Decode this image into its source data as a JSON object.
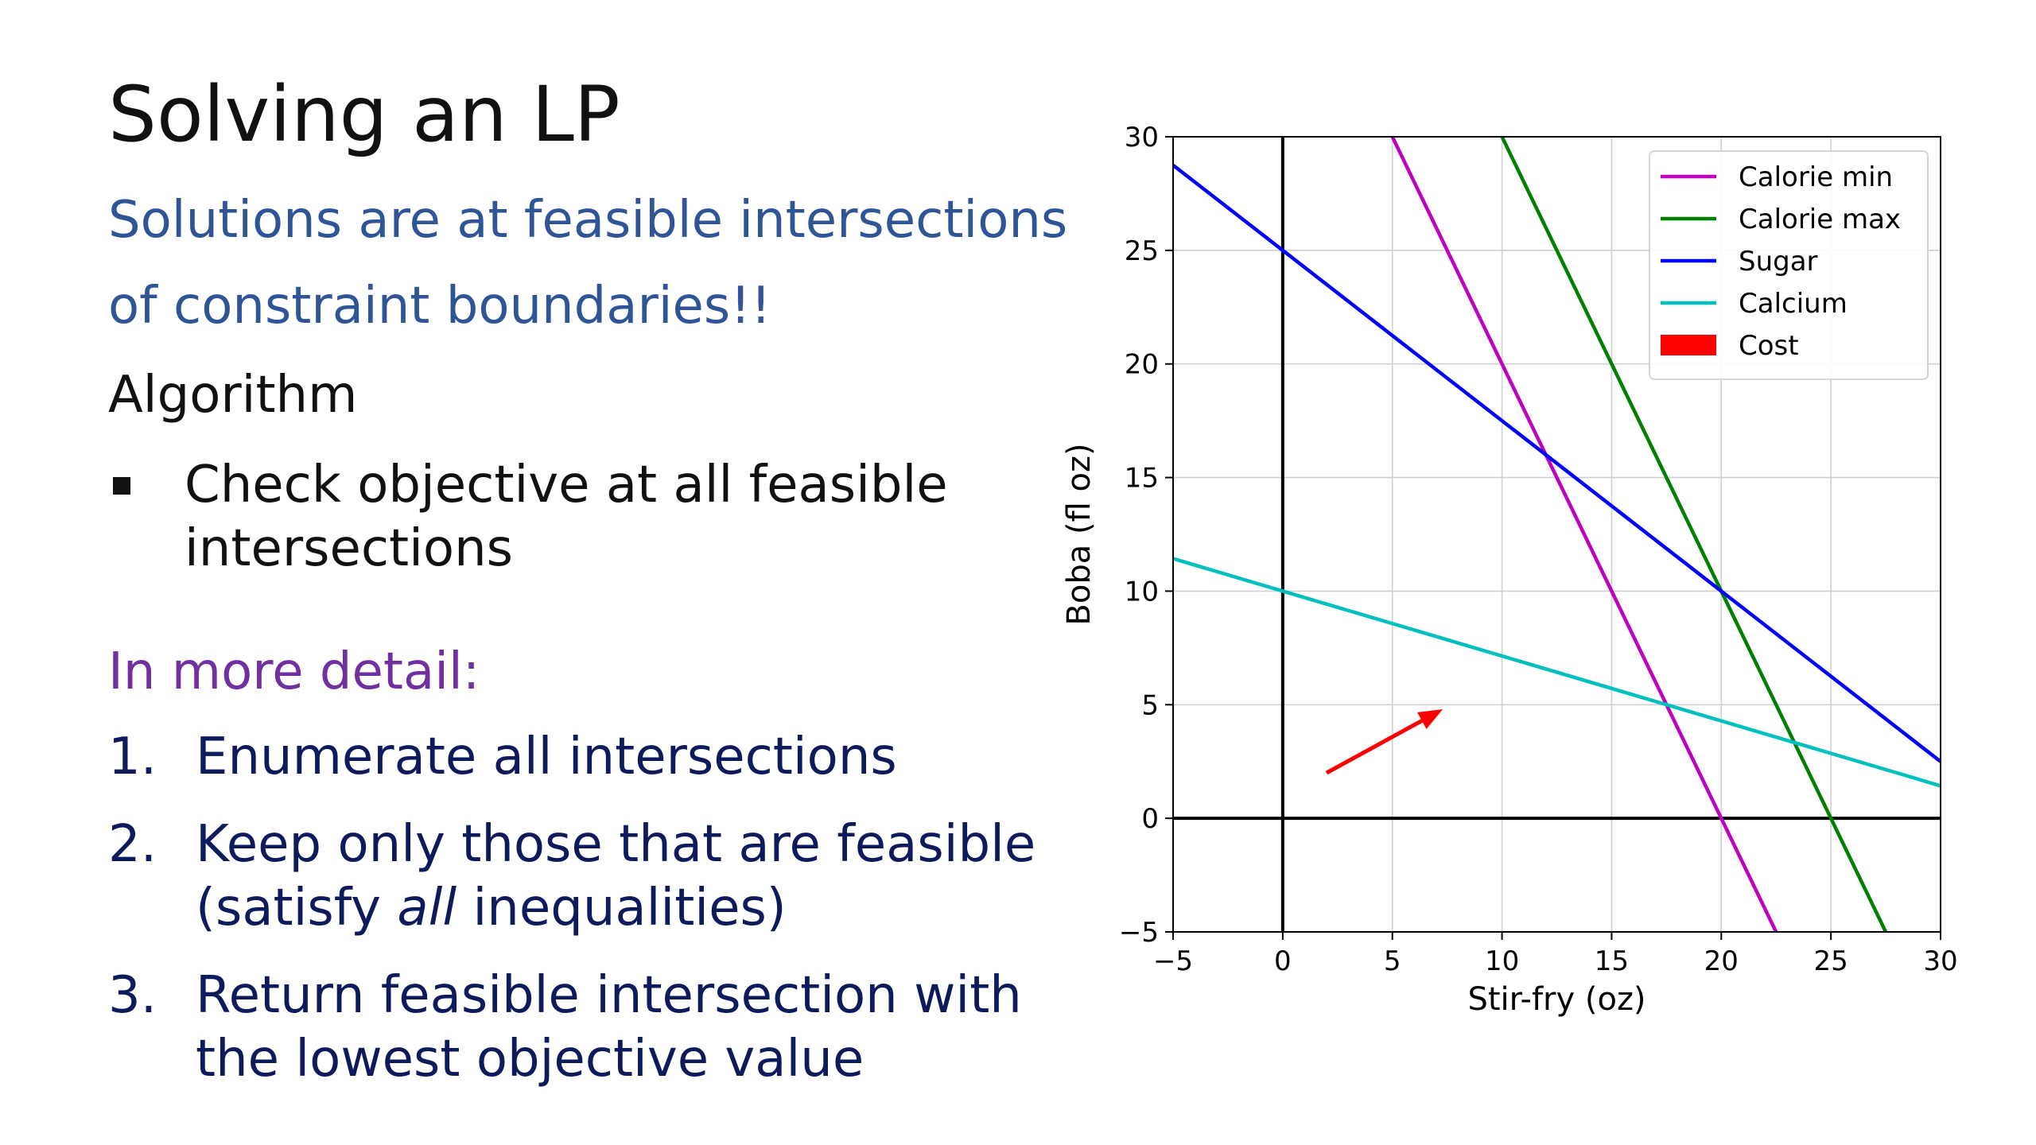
{
  "slide": {
    "title": "Solving an LP",
    "subtitle_line1": "Solutions are at feasible intersections",
    "subtitle_line2": "of constraint boundaries!!",
    "algorithm_heading": "Algorithm",
    "bullet_line1": "Check objective at all feasible",
    "bullet_line2": "intersections",
    "detail_heading": "In more detail:",
    "steps": [
      {
        "num": "1.",
        "line1": "Enumerate all intersections"
      },
      {
        "num": "2.",
        "line1": "Keep only those that are feasible",
        "line2_pre": "(satisfy ",
        "line2_em": "all",
        "line2_post": " inequalities)"
      },
      {
        "num": "3.",
        "line1": "Return feasible intersection with",
        "line2": "the lowest objective value"
      }
    ]
  },
  "chart_data": {
    "type": "line",
    "xlabel": "Stir-fry (oz)",
    "ylabel": "Boba (fl oz)",
    "xlim": [
      -5,
      30
    ],
    "ylim": [
      -5,
      30
    ],
    "xticks": [
      -5,
      0,
      5,
      10,
      15,
      20,
      25,
      30
    ],
    "yticks": [
      -5,
      0,
      5,
      10,
      15,
      20,
      25,
      30
    ],
    "grid": true,
    "legend_position": "top-right",
    "series": [
      {
        "name": "Calorie min",
        "color": "#BF00BF",
        "points": [
          [
            5,
            30
          ],
          [
            22.5,
            -5
          ]
        ]
      },
      {
        "name": "Calorie max",
        "color": "#008000",
        "points": [
          [
            10,
            30
          ],
          [
            27.5,
            -5
          ]
        ]
      },
      {
        "name": "Sugar",
        "color": "#0000FF",
        "points": [
          [
            -5,
            28.75
          ],
          [
            30,
            2.5
          ]
        ]
      },
      {
        "name": "Calcium",
        "color": "#00BFBF",
        "points": [
          [
            -5,
            11.43
          ],
          [
            30,
            1.43
          ]
        ]
      }
    ],
    "cost_legend": {
      "name": "Cost",
      "color": "#FF0000"
    },
    "cost_arrow": {
      "from": [
        2,
        2
      ],
      "to": [
        7.3,
        4.8
      ],
      "color": "#FF0000"
    }
  }
}
